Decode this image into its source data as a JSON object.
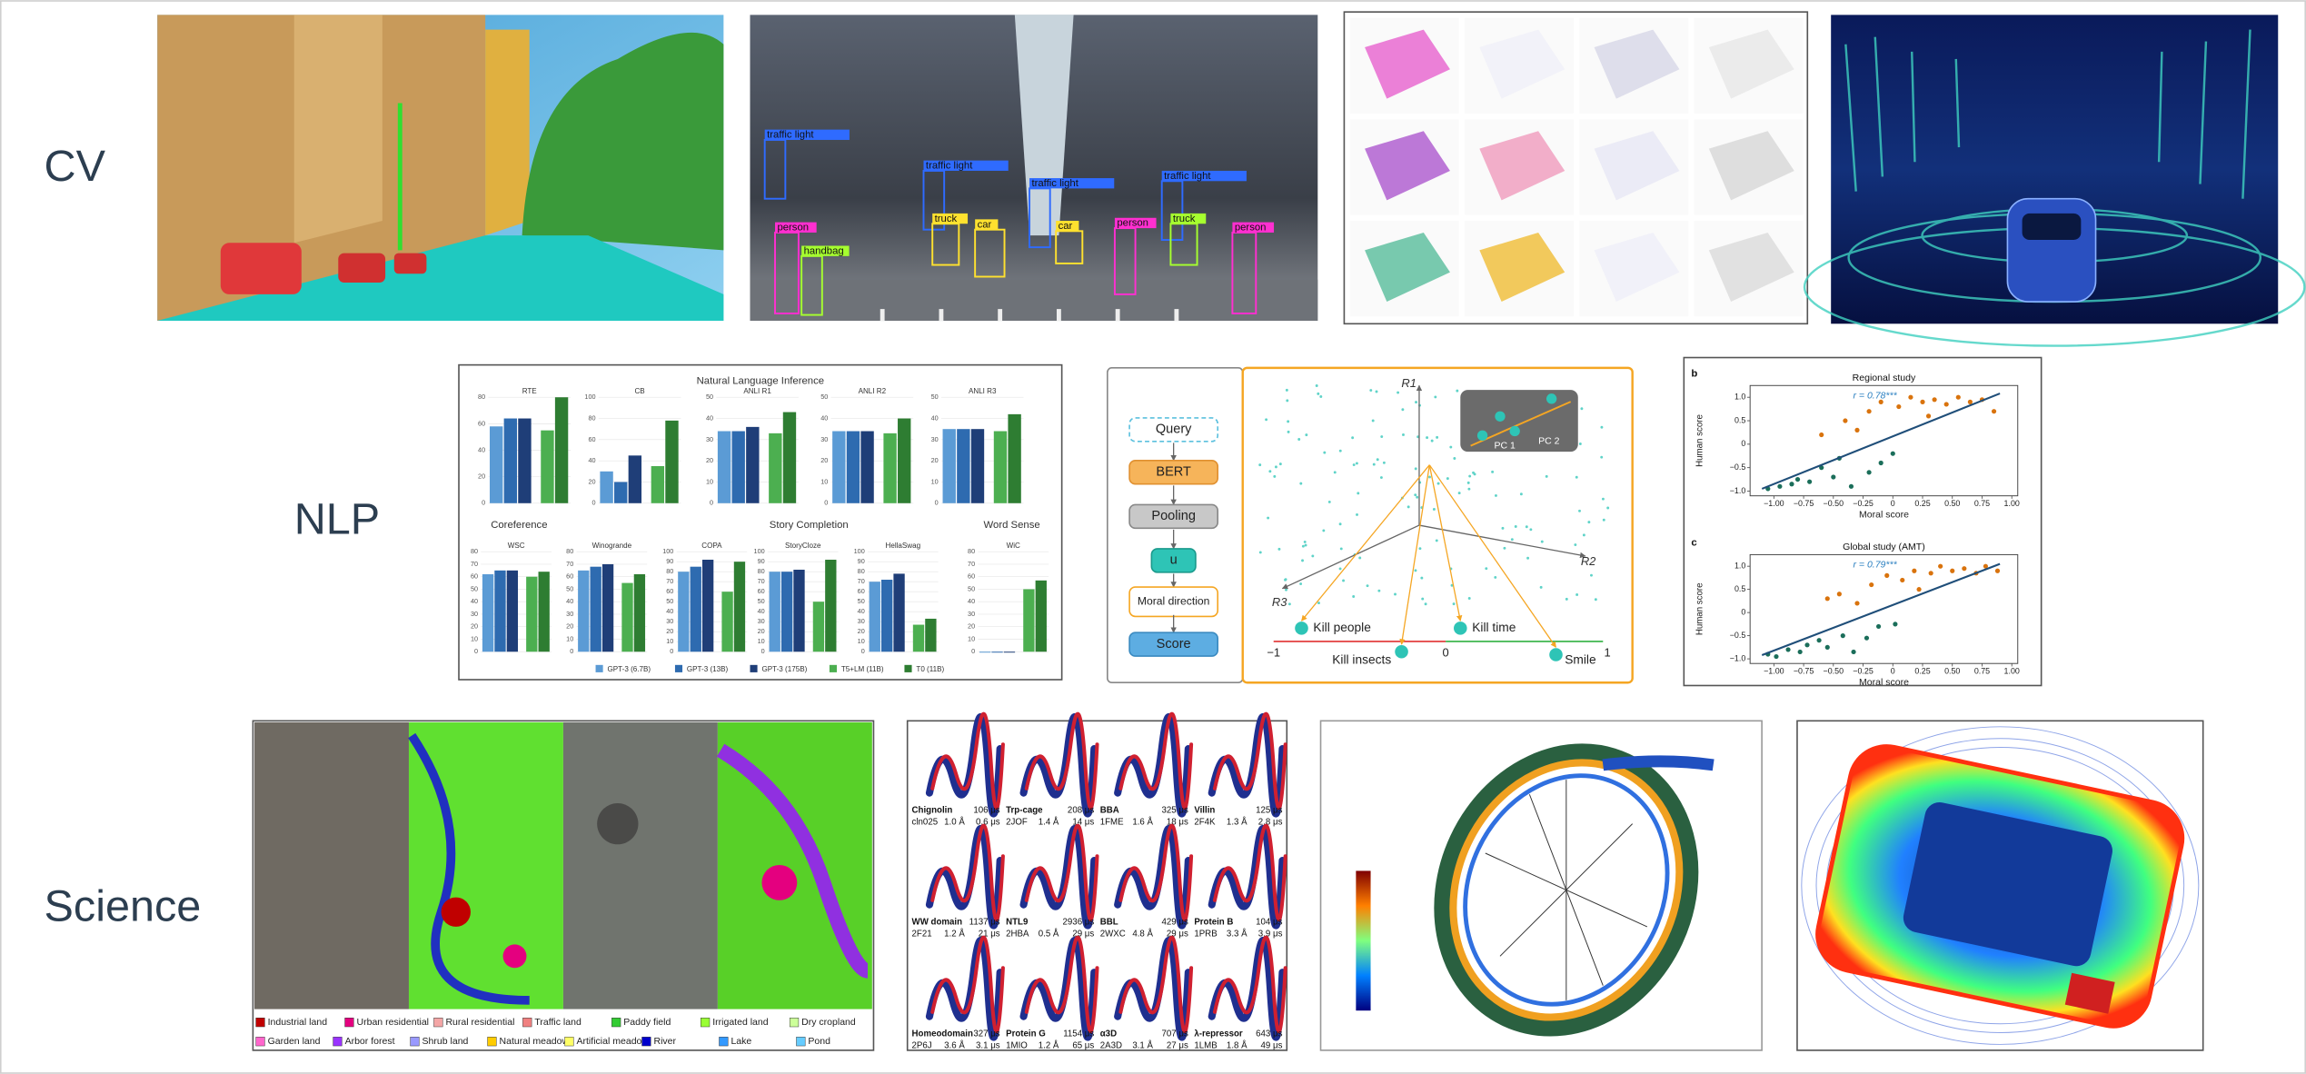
{
  "rows": [
    "CV",
    "NLP",
    "Science"
  ],
  "cv": {
    "detections": [
      {
        "label": "traffic light",
        "color": "#2f6bff"
      },
      {
        "label": "traffic light",
        "color": "#2f6bff"
      },
      {
        "label": "traffic light",
        "color": "#2f6bff"
      },
      {
        "label": "traffic light",
        "color": "#2f6bff"
      },
      {
        "label": "person",
        "color": "#ff2fd0"
      },
      {
        "label": "person",
        "color": "#ff2fd0"
      },
      {
        "label": "person",
        "color": "#ff2fd0"
      },
      {
        "label": "handbag",
        "color": "#a6ff2f"
      },
      {
        "label": "truck",
        "color": "#ffe12f"
      },
      {
        "label": "car",
        "color": "#ffe12f"
      },
      {
        "label": "car",
        "color": "#ffe12f"
      },
      {
        "label": "truck",
        "color": "#a6ff2f"
      }
    ]
  },
  "nlp": {
    "chart": {
      "title": "Natural Language Inference",
      "groups": [
        "Coreference",
        "Story Completion",
        "Word Sense"
      ],
      "series": [
        {
          "name": "GPT-3 (6.7B)",
          "color": "#5b9bd5"
        },
        {
          "name": "GPT-3 (13B)",
          "color": "#2e6bb0"
        },
        {
          "name": "GPT-3 (175B)",
          "color": "#1f3e78"
        },
        {
          "name": "T5+LM (11B)",
          "color": "#4caf50"
        },
        {
          "name": "T0 (11B)",
          "color": "#2e7d32"
        }
      ],
      "panels": [
        {
          "name": "RTE",
          "ylim": [
            0,
            80
          ],
          "yticks": [
            0,
            20,
            40,
            60,
            80
          ],
          "values": [
            58,
            64,
            64,
            55,
            80
          ]
        },
        {
          "name": "CB",
          "ylim": [
            0,
            100
          ],
          "yticks": [
            0,
            20,
            40,
            60,
            80,
            100
          ],
          "values": [
            30,
            20,
            45,
            35,
            78
          ]
        },
        {
          "name": "ANLI R1",
          "ylim": [
            0,
            50
          ],
          "yticks": [
            0,
            10,
            20,
            30,
            40,
            50
          ],
          "values": [
            34,
            34,
            36,
            33,
            43
          ]
        },
        {
          "name": "ANLI R2",
          "ylim": [
            0,
            50
          ],
          "yticks": [
            0,
            10,
            20,
            30,
            40,
            50
          ],
          "values": [
            34,
            34,
            34,
            33,
            40
          ]
        },
        {
          "name": "ANLI R3",
          "ylim": [
            0,
            50
          ],
          "yticks": [
            0,
            10,
            20,
            30,
            40,
            50
          ],
          "values": [
            35,
            35,
            35,
            34,
            42
          ]
        },
        {
          "name": "WSC",
          "ylim": [
            0,
            80
          ],
          "yticks": [
            0,
            10,
            20,
            30,
            40,
            50,
            60,
            70,
            80
          ],
          "values": [
            62,
            65,
            65,
            60,
            64
          ]
        },
        {
          "name": "Winogrande",
          "ylim": [
            0,
            80
          ],
          "yticks": [
            0,
            10,
            20,
            30,
            40,
            50,
            60,
            70,
            80
          ],
          "values": [
            65,
            68,
            70,
            55,
            62
          ]
        },
        {
          "name": "COPA",
          "ylim": [
            0,
            100
          ],
          "yticks": [
            0,
            10,
            20,
            30,
            40,
            50,
            60,
            70,
            80,
            90,
            100
          ],
          "values": [
            80,
            85,
            92,
            60,
            90
          ]
        },
        {
          "name": "StoryCloze",
          "ylim": [
            0,
            100
          ],
          "yticks": [
            0,
            10,
            20,
            30,
            40,
            50,
            60,
            70,
            80,
            90,
            100
          ],
          "values": [
            80,
            80,
            82,
            50,
            92
          ]
        },
        {
          "name": "HellaSwag",
          "ylim": [
            0,
            100
          ],
          "yticks": [
            0,
            10,
            20,
            30,
            40,
            50,
            60,
            70,
            80,
            90,
            100
          ],
          "values": [
            70,
            72,
            78,
            27,
            33
          ]
        },
        {
          "name": "WiC",
          "ylim": [
            0,
            80
          ],
          "yticks": [
            0,
            10,
            20,
            30,
            40,
            50,
            60,
            70,
            80
          ],
          "values": [
            0,
            0,
            0,
            50,
            57
          ]
        }
      ]
    },
    "diagram": {
      "pipeline": [
        "Query",
        "BERT",
        "Pooling",
        "u",
        "Moral direction",
        "Score"
      ],
      "axes": [
        "R1",
        "R2",
        "R3"
      ],
      "pcs": [
        "PC 1",
        "PC 2"
      ],
      "points": [
        "Kill people",
        "Kill insects",
        "Kill time",
        "Smile"
      ],
      "scale": [
        "−1",
        "0",
        "1"
      ]
    },
    "regression": {
      "xlabel": "Moral score",
      "ylabel": "Human score",
      "xlim": [
        -1.2,
        1.05
      ],
      "ylim": [
        -1.1,
        1.25
      ],
      "xticks": [
        {
          "value": -1,
          "label": "−1.00"
        },
        {
          "value": -0.75,
          "label": "−0.75"
        },
        {
          "value": -0.5,
          "label": "−0.50"
        },
        {
          "value": -0.25,
          "label": "−0.25"
        },
        0,
        {
          "value": 0.25,
          "label": "0.25"
        },
        {
          "value": 0.5,
          "label": "0.50"
        },
        {
          "value": 0.75,
          "label": "0.75"
        },
        {
          "value": 1,
          "label": "1.00"
        }
      ],
      "yticks": [
        {
          "value": -1,
          "label": "−1.0"
        },
        {
          "value": -0.5,
          "label": "−0.5"
        },
        0,
        {
          "value": 0.5,
          "label": "0.5"
        },
        {
          "value": 1,
          "label": "1.0"
        }
      ],
      "colors": [
        "#1b6e5a",
        "#d9730d"
      ],
      "panels": [
        {
          "tag": "b",
          "title": "Regional study",
          "r": "r = 0.78***",
          "fit": {
            "x": [
              -1.1,
              0.9
            ],
            "y": [
              -0.95,
              1.08
            ]
          },
          "x": [
            -1.05,
            -0.95,
            -0.85,
            -0.8,
            -0.7,
            -0.6,
            -0.5,
            -0.45,
            -0.35,
            -0.2,
            -0.1,
            0.0,
            -0.6,
            -0.4,
            -0.3,
            -0.2,
            -0.1,
            0.05,
            0.15,
            0.25,
            0.3,
            0.35,
            0.45,
            0.55,
            0.65,
            0.75,
            0.85
          ],
          "y": [
            -0.95,
            -0.9,
            -0.85,
            -0.75,
            -0.8,
            -0.5,
            -0.7,
            -0.3,
            -0.9,
            -0.6,
            -0.4,
            -0.2,
            0.2,
            0.5,
            0.3,
            0.7,
            0.9,
            0.8,
            1.0,
            0.9,
            0.6,
            0.95,
            0.85,
            1.0,
            0.9,
            0.95,
            0.7
          ]
        },
        {
          "tag": "c",
          "title": "Global study (AMT)",
          "r": "r = 0.79***",
          "fit": {
            "x": [
              -1.1,
              0.9
            ],
            "y": [
              -0.92,
              1.05
            ]
          },
          "x": [
            -1.05,
            -0.98,
            -0.88,
            -0.78,
            -0.72,
            -0.62,
            -0.55,
            -0.42,
            -0.33,
            -0.22,
            -0.12,
            0.02,
            -0.55,
            -0.45,
            -0.3,
            -0.18,
            -0.05,
            0.08,
            0.18,
            0.22,
            0.32,
            0.4,
            0.5,
            0.6,
            0.7,
            0.78,
            0.88
          ],
          "y": [
            -0.9,
            -0.95,
            -0.8,
            -0.85,
            -0.7,
            -0.6,
            -0.75,
            -0.5,
            -0.85,
            -0.55,
            -0.3,
            -0.25,
            0.3,
            0.4,
            0.2,
            0.6,
            0.8,
            0.7,
            0.9,
            0.5,
            0.85,
            1.0,
            0.9,
            0.95,
            0.85,
            1.0,
            0.9
          ]
        }
      ]
    }
  },
  "science": {
    "land_legend": [
      {
        "label": "Industrial land",
        "color": "#c00000"
      },
      {
        "label": "Urban residential",
        "color": "#e4007f"
      },
      {
        "label": "Rural residential",
        "color": "#f4a6a6"
      },
      {
        "label": "Traffic land",
        "color": "#f08080"
      },
      {
        "label": "Paddy field",
        "color": "#33cc33"
      },
      {
        "label": "Irrigated land",
        "color": "#99ff33"
      },
      {
        "label": "Dry cropland",
        "color": "#ccff99"
      },
      {
        "label": "Garden land",
        "color": "#ff66cc"
      },
      {
        "label": "Arbor forest",
        "color": "#9933ff"
      },
      {
        "label": "Shrub land",
        "color": "#9999ff"
      },
      {
        "label": "Natural meadow",
        "color": "#ffcc00"
      },
      {
        "label": "Artificial meadow",
        "color": "#ffff66"
      },
      {
        "label": "River",
        "color": "#0000cc"
      },
      {
        "label": "Lake",
        "color": "#3399ff"
      },
      {
        "label": "Pond",
        "color": "#66ccff"
      }
    ],
    "proteins": [
      {
        "name": "Chignolin",
        "time": "106 μs",
        "id": "cln025",
        "rmsd": "1.0 Å",
        "fold": "0.6 μs"
      },
      {
        "name": "Trp-cage",
        "time": "208 μs",
        "id": "2JOF",
        "rmsd": "1.4 Å",
        "fold": "14 μs"
      },
      {
        "name": "BBA",
        "time": "325 μs",
        "id": "1FME",
        "rmsd": "1.6 Å",
        "fold": "18 μs"
      },
      {
        "name": "Villin",
        "time": "125 μs",
        "id": "2F4K",
        "rmsd": "1.3 Å",
        "fold": "2.8 μs"
      },
      {
        "name": "WW domain",
        "time": "1137 μs",
        "id": "2F21",
        "rmsd": "1.2 Å",
        "fold": "21 μs"
      },
      {
        "name": "NTL9",
        "time": "2936 μs",
        "id": "2HBA",
        "rmsd": "0.5 Å",
        "fold": "29 μs"
      },
      {
        "name": "BBL",
        "time": "429 μs",
        "id": "2WXC",
        "rmsd": "4.8 Å",
        "fold": "29 μs"
      },
      {
        "name": "Protein B",
        "time": "104 μs",
        "id": "1PRB",
        "rmsd": "3.3 Å",
        "fold": "3.9 μs"
      },
      {
        "name": "Homeodomain",
        "time": "327 μs",
        "id": "2P6J",
        "rmsd": "3.6 Å",
        "fold": "3.1 μs"
      },
      {
        "name": "Protein G",
        "time": "1154 μs",
        "id": "1MIO",
        "rmsd": "1.2 Å",
        "fold": "65 μs"
      },
      {
        "name": "α3D",
        "time": "707 μs",
        "id": "2A3D",
        "rmsd": "3.1 Å",
        "fold": "27 μs"
      },
      {
        "name": "λ-repressor",
        "time": "643 μs",
        "id": "1LMB",
        "rmsd": "1.8 Å",
        "fold": "49 μs"
      }
    ]
  }
}
